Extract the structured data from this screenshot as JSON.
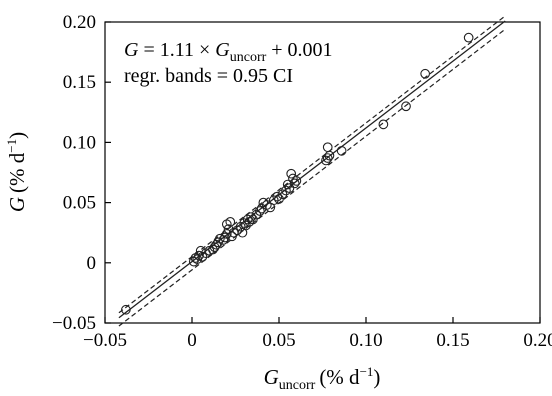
{
  "chart_data": {
    "type": "scatter",
    "title": "",
    "xlabel": {
      "symbol": "G",
      "subscript": "uncorr",
      "unit_open": "(% d",
      "unit_exp": "−1",
      "unit_close": ")"
    },
    "ylabel": {
      "symbol": "G",
      "unit_open": "(% d",
      "unit_exp": "−1",
      "unit_close": ")"
    },
    "xlim": [
      -0.05,
      0.2
    ],
    "ylim": [
      -0.05,
      0.2
    ],
    "x_ticks": [
      -0.05,
      0,
      0.05,
      0.1,
      0.15,
      0.2
    ],
    "x_tick_labels": [
      "−0.05",
      "0",
      "0.05",
      "0.10",
      "0.15",
      "0.20"
    ],
    "y_ticks": [
      -0.05,
      0,
      0.05,
      0.1,
      0.15,
      0.2
    ],
    "y_tick_labels": [
      "−0.05",
      "0",
      "0.05",
      "0.10",
      "0.15",
      "0.20"
    ],
    "grid": false,
    "annotations": {
      "equation": {
        "lhs": "G",
        "middle": " = 1.11 × ",
        "symbol": "G",
        "subscript": "uncorr",
        "tail": " + 0.001"
      },
      "bands": "regr. bands = 0.95 CI"
    },
    "regression": {
      "slope": 1.11,
      "intercept": 0.001,
      "x_range": [
        -0.042,
        0.18
      ],
      "ci_upper": [
        [
          -0.042,
          -0.0415
        ],
        [
          0.18,
          0.205
        ]
      ],
      "ci_lower": [
        [
          -0.042,
          -0.0525
        ],
        [
          0.18,
          0.194
        ]
      ]
    },
    "series": [
      {
        "marker": "open-circle",
        "points": [
          [
            -0.038,
            -0.039
          ],
          [
            0.001,
            0.001
          ],
          [
            0.002,
            0.004
          ],
          [
            0.003,
            0.003
          ],
          [
            0.004,
            0.006
          ],
          [
            0.005,
            0.01
          ],
          [
            0.006,
            0.005
          ],
          [
            0.008,
            0.008
          ],
          [
            0.01,
            0.01
          ],
          [
            0.012,
            0.011
          ],
          [
            0.013,
            0.013
          ],
          [
            0.014,
            0.015
          ],
          [
            0.015,
            0.017
          ],
          [
            0.016,
            0.02
          ],
          [
            0.018,
            0.019
          ],
          [
            0.019,
            0.021
          ],
          [
            0.02,
            0.024
          ],
          [
            0.02,
            0.032
          ],
          [
            0.021,
            0.028
          ],
          [
            0.022,
            0.034
          ],
          [
            0.023,
            0.022
          ],
          [
            0.024,
            0.025
          ],
          [
            0.026,
            0.027
          ],
          [
            0.028,
            0.03
          ],
          [
            0.029,
            0.025
          ],
          [
            0.03,
            0.033
          ],
          [
            0.031,
            0.031
          ],
          [
            0.032,
            0.036
          ],
          [
            0.033,
            0.034
          ],
          [
            0.034,
            0.038
          ],
          [
            0.035,
            0.036
          ],
          [
            0.037,
            0.04
          ],
          [
            0.039,
            0.043
          ],
          [
            0.04,
            0.045
          ],
          [
            0.041,
            0.05
          ],
          [
            0.043,
            0.048
          ],
          [
            0.045,
            0.046
          ],
          [
            0.047,
            0.052
          ],
          [
            0.049,
            0.055
          ],
          [
            0.05,
            0.053
          ],
          [
            0.052,
            0.057
          ],
          [
            0.054,
            0.06
          ],
          [
            0.055,
            0.065
          ],
          [
            0.056,
            0.062
          ],
          [
            0.057,
            0.074
          ],
          [
            0.058,
            0.07
          ],
          [
            0.059,
            0.066
          ],
          [
            0.06,
            0.068
          ],
          [
            0.077,
            0.085
          ],
          [
            0.078,
            0.087
          ],
          [
            0.078,
            0.096
          ],
          [
            0.079,
            0.089
          ],
          [
            0.086,
            0.093
          ],
          [
            0.11,
            0.115
          ],
          [
            0.123,
            0.13
          ],
          [
            0.134,
            0.157
          ],
          [
            0.159,
            0.187
          ]
        ]
      }
    ]
  }
}
